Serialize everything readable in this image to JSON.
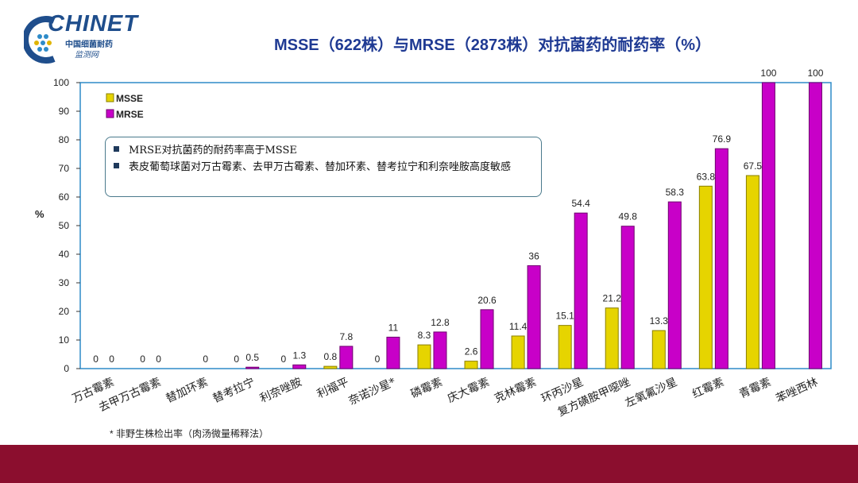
{
  "logo": {
    "brand": "CHINET",
    "line1": "中国细菌耐药",
    "line2": "监测网"
  },
  "title": "MSSE（622株）与MRSE（2873株）对抗菌药的耐药率（%）",
  "notes": [
    "MRSE对抗菌药的耐药率高于MSSE",
    "表皮葡萄球菌对万古霉素、去甲万古霉素、替加环素、替考拉宁和利奈唑胺高度敏感"
  ],
  "footnote": "* 非野生株检出率（肉汤微量稀释法）",
  "colors": {
    "msse": "#e6d400",
    "mrse": "#c800c8",
    "footer": "#8b0e2e",
    "title": "#1f3a93"
  },
  "chart_data": {
    "type": "bar",
    "title": "MSSE（622株）与MRSE（2873株）对抗菌药的耐药率（%）",
    "ylabel": "%",
    "xlabel": "",
    "ylim": [
      0,
      100
    ],
    "yticks": [
      0,
      10,
      20,
      30,
      40,
      50,
      60,
      70,
      80,
      90,
      100
    ],
    "legend_position": "top-left",
    "categories": [
      "万古霉素",
      "去甲万古霉素",
      "替加环素",
      "替考拉宁",
      "利奈唑胺",
      "利福平",
      "奈诺沙星*",
      "磷霉素",
      "庆大霉素",
      "克林霉素",
      "环丙沙星",
      "复方磺胺甲噁唑",
      "左氧氟沙星",
      "红霉素",
      "青霉素",
      "苯唑西林"
    ],
    "series": [
      {
        "name": "MSSE",
        "values": [
          0,
          0,
          null,
          0,
          0,
          0.8,
          0,
          8.3,
          2.6,
          11.4,
          15.1,
          21.2,
          13.3,
          63.8,
          67.5,
          null
        ],
        "labels": [
          "0",
          "0",
          "",
          "0",
          "0",
          "0.8",
          "0",
          "8.3",
          "2.6",
          "11.4",
          "15.1",
          "21.2",
          "13.3",
          "63.8",
          "67.5",
          ""
        ]
      },
      {
        "name": "MRSE",
        "values": [
          0,
          0,
          0,
          0.5,
          1.3,
          7.8,
          11,
          12.8,
          20.6,
          36,
          54.4,
          49.8,
          58.3,
          76.9,
          100,
          100
        ],
        "labels": [
          "0",
          "0",
          "0",
          "0.5",
          "1.3",
          "7.8",
          "11",
          "12.8",
          "20.6",
          "36",
          "54.4",
          "49.8",
          "58.3",
          "76.9",
          "100",
          "100"
        ]
      }
    ],
    "stray_labels": [
      {
        "text": "0",
        "category_index": 8,
        "y": 62
      }
    ]
  }
}
